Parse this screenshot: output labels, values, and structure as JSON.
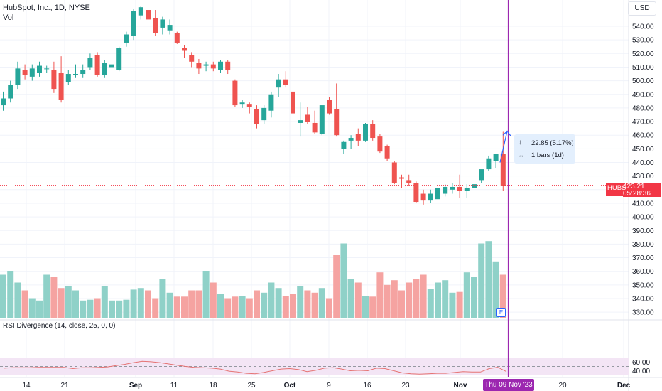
{
  "header": {
    "symbol_title": "HubSpot, Inc., 1D, NYSE",
    "volume_label": "Vol",
    "currency_button": "USD"
  },
  "rsi": {
    "legend": "RSI Divergence (14, close, 25, 0, 0)",
    "axis_ticks": [
      "60.00",
      "40.00"
    ],
    "values": [
      46,
      47,
      47,
      47,
      48,
      48,
      48,
      48,
      45,
      47,
      47,
      48,
      49,
      52,
      55,
      59,
      62,
      61,
      59,
      56,
      53,
      50,
      48,
      47,
      46,
      44,
      39,
      37,
      34,
      33,
      36,
      40,
      44,
      45,
      43,
      38,
      41,
      46,
      47,
      44,
      40,
      41,
      40,
      46,
      45,
      40,
      35,
      33,
      32,
      33,
      34,
      34,
      36,
      38,
      37,
      37,
      45,
      48,
      38
    ],
    "bands": [
      70,
      50,
      30
    ],
    "line_color": "#e57373",
    "fill_color": "#f3e5f5"
  },
  "price_axis": {
    "ticks": [
      "540.00",
      "530.00",
      "520.00",
      "510.00",
      "500.00",
      "490.00",
      "480.00",
      "470.00",
      "460.00",
      "450.00",
      "440.00",
      "430.00",
      "420.00",
      "410.00",
      "400.00",
      "390.00",
      "380.00",
      "370.00",
      "360.00",
      "350.00",
      "340.00",
      "330.00"
    ]
  },
  "time_axis": {
    "ticks": [
      "14",
      "21",
      "Sep",
      "11",
      "18",
      "25",
      "Oct",
      "9",
      "16",
      "23",
      "Nov",
      "20",
      "Dec"
    ]
  },
  "price_tag": {
    "ticker": "HUBS",
    "price": "423.21",
    "countdown": "05:28:36",
    "color": "#f23645"
  },
  "measure": {
    "change_text": "22.85 (5.17%)",
    "bars_text": "1 bars (1d)",
    "updown_icon": "↕",
    "bars_icon": "↔"
  },
  "crosshair": {
    "date_label": "Thu 09 Nov '23",
    "color": "#9c27b0"
  },
  "earnings": {
    "label": "E"
  },
  "colors": {
    "up": "#26a69a",
    "down": "#ef5350",
    "vol_up": "#8fd1c8",
    "vol_down": "#f5a3a1",
    "grid": "#f0f3fa",
    "text": "#131722"
  },
  "chart_data": {
    "type": "candlestick",
    "symbol": "HUBS",
    "interval": "1D",
    "exchange": "NYSE",
    "ylim": [
      330,
      550
    ],
    "candles": [
      {
        "o": 482,
        "h": 492,
        "l": 478,
        "c": 487
      },
      {
        "o": 487,
        "h": 500,
        "l": 484,
        "c": 497
      },
      {
        "o": 497,
        "h": 514,
        "l": 494,
        "c": 509
      },
      {
        "o": 508,
        "h": 512,
        "l": 501,
        "c": 504
      },
      {
        "o": 503,
        "h": 512,
        "l": 500,
        "c": 509
      },
      {
        "o": 506,
        "h": 514,
        "l": 503,
        "c": 511
      },
      {
        "o": 509,
        "h": 511,
        "l": 506,
        "c": 509
      },
      {
        "o": 508,
        "h": 514,
        "l": 491,
        "c": 494
      },
      {
        "o": 506,
        "h": 518,
        "l": 484,
        "c": 486
      },
      {
        "o": 499,
        "h": 508,
        "l": 497,
        "c": 505
      },
      {
        "o": 505,
        "h": 512,
        "l": 502,
        "c": 505
      },
      {
        "o": 505,
        "h": 512,
        "l": 502,
        "c": 508
      },
      {
        "o": 510,
        "h": 520,
        "l": 508,
        "c": 517
      },
      {
        "o": 519,
        "h": 521,
        "l": 503,
        "c": 504
      },
      {
        "o": 504,
        "h": 515,
        "l": 502,
        "c": 513
      },
      {
        "o": 510,
        "h": 516,
        "l": 507,
        "c": 512
      },
      {
        "o": 508,
        "h": 525,
        "l": 507,
        "c": 524
      },
      {
        "o": 528,
        "h": 536,
        "l": 525,
        "c": 534
      },
      {
        "o": 533,
        "h": 553,
        "l": 530,
        "c": 551
      },
      {
        "o": 548,
        "h": 555,
        "l": 545,
        "c": 554
      },
      {
        "o": 552,
        "h": 557,
        "l": 541,
        "c": 545
      },
      {
        "o": 546,
        "h": 552,
        "l": 533,
        "c": 535
      },
      {
        "o": 539,
        "h": 547,
        "l": 534,
        "c": 545
      },
      {
        "o": 537,
        "h": 545,
        "l": 534,
        "c": 541
      },
      {
        "o": 535,
        "h": 536,
        "l": 527,
        "c": 528
      },
      {
        "o": 524,
        "h": 526,
        "l": 517,
        "c": 522
      },
      {
        "o": 519,
        "h": 521,
        "l": 510,
        "c": 514
      },
      {
        "o": 513,
        "h": 516,
        "l": 505,
        "c": 509
      },
      {
        "o": 511,
        "h": 514,
        "l": 507,
        "c": 512
      },
      {
        "o": 512,
        "h": 514,
        "l": 507,
        "c": 509
      },
      {
        "o": 508,
        "h": 515,
        "l": 506,
        "c": 514
      },
      {
        "o": 514,
        "h": 515,
        "l": 505,
        "c": 508
      },
      {
        "o": 500,
        "h": 501,
        "l": 481,
        "c": 482
      },
      {
        "o": 483,
        "h": 486,
        "l": 480,
        "c": 484
      },
      {
        "o": 483,
        "h": 484,
        "l": 476,
        "c": 481
      },
      {
        "o": 479,
        "h": 482,
        "l": 465,
        "c": 468
      },
      {
        "o": 471,
        "h": 482,
        "l": 468,
        "c": 480
      },
      {
        "o": 478,
        "h": 492,
        "l": 473,
        "c": 490
      },
      {
        "o": 495,
        "h": 505,
        "l": 488,
        "c": 501
      },
      {
        "o": 501,
        "h": 507,
        "l": 495,
        "c": 497
      },
      {
        "o": 492,
        "h": 499,
        "l": 476,
        "c": 476
      },
      {
        "o": 469,
        "h": 484,
        "l": 459,
        "c": 471
      },
      {
        "o": 475,
        "h": 481,
        "l": 468,
        "c": 470
      },
      {
        "o": 469,
        "h": 478,
        "l": 461,
        "c": 462
      },
      {
        "o": 461,
        "h": 482,
        "l": 460,
        "c": 482
      },
      {
        "o": 486,
        "h": 488,
        "l": 475,
        "c": 476
      },
      {
        "o": 479,
        "h": 498,
        "l": 459,
        "c": 460
      },
      {
        "o": 450,
        "h": 456,
        "l": 446,
        "c": 455
      },
      {
        "o": 456,
        "h": 460,
        "l": 450,
        "c": 458
      },
      {
        "o": 461,
        "h": 465,
        "l": 452,
        "c": 456
      },
      {
        "o": 456,
        "h": 469,
        "l": 455,
        "c": 468
      },
      {
        "o": 468,
        "h": 471,
        "l": 456,
        "c": 458
      },
      {
        "o": 459,
        "h": 461,
        "l": 447,
        "c": 448
      },
      {
        "o": 452,
        "h": 453,
        "l": 441,
        "c": 443
      },
      {
        "o": 440,
        "h": 441,
        "l": 424,
        "c": 425
      },
      {
        "o": 429,
        "h": 431,
        "l": 421,
        "c": 428
      },
      {
        "o": 427,
        "h": 431,
        "l": 423,
        "c": 425
      },
      {
        "o": 425,
        "h": 426,
        "l": 410,
        "c": 411
      },
      {
        "o": 417,
        "h": 420,
        "l": 409,
        "c": 412
      },
      {
        "o": 412,
        "h": 420,
        "l": 410,
        "c": 417
      },
      {
        "o": 413,
        "h": 422,
        "l": 411,
        "c": 421
      },
      {
        "o": 417,
        "h": 424,
        "l": 415,
        "c": 422
      },
      {
        "o": 420,
        "h": 425,
        "l": 417,
        "c": 422
      },
      {
        "o": 422,
        "h": 431,
        "l": 414,
        "c": 419
      },
      {
        "o": 419,
        "h": 424,
        "l": 414,
        "c": 421
      },
      {
        "o": 421,
        "h": 428,
        "l": 416,
        "c": 424
      },
      {
        "o": 427,
        "h": 434,
        "l": 425,
        "c": 435
      },
      {
        "o": 435,
        "h": 445,
        "l": 434,
        "c": 443
      },
      {
        "o": 441,
        "h": 446,
        "l": 436,
        "c": 446
      },
      {
        "o": 446,
        "h": 463,
        "l": 419,
        "c": 423
      }
    ],
    "volume_relative": [
      55,
      60,
      45,
      35,
      25,
      22,
      55,
      52,
      38,
      40,
      35,
      22,
      23,
      25,
      40,
      22,
      22,
      23,
      36,
      38,
      35,
      25,
      50,
      32,
      27,
      27,
      35,
      35,
      60,
      45,
      30,
      25,
      27,
      28,
      25,
      35,
      32,
      45,
      38,
      28,
      30,
      40,
      35,
      32,
      38,
      25,
      80,
      95,
      50,
      45,
      28,
      27,
      58,
      42,
      48,
      35,
      45,
      50,
      55,
      37,
      45,
      48,
      32,
      33,
      58,
      52,
      95,
      98,
      72,
      55
    ]
  }
}
